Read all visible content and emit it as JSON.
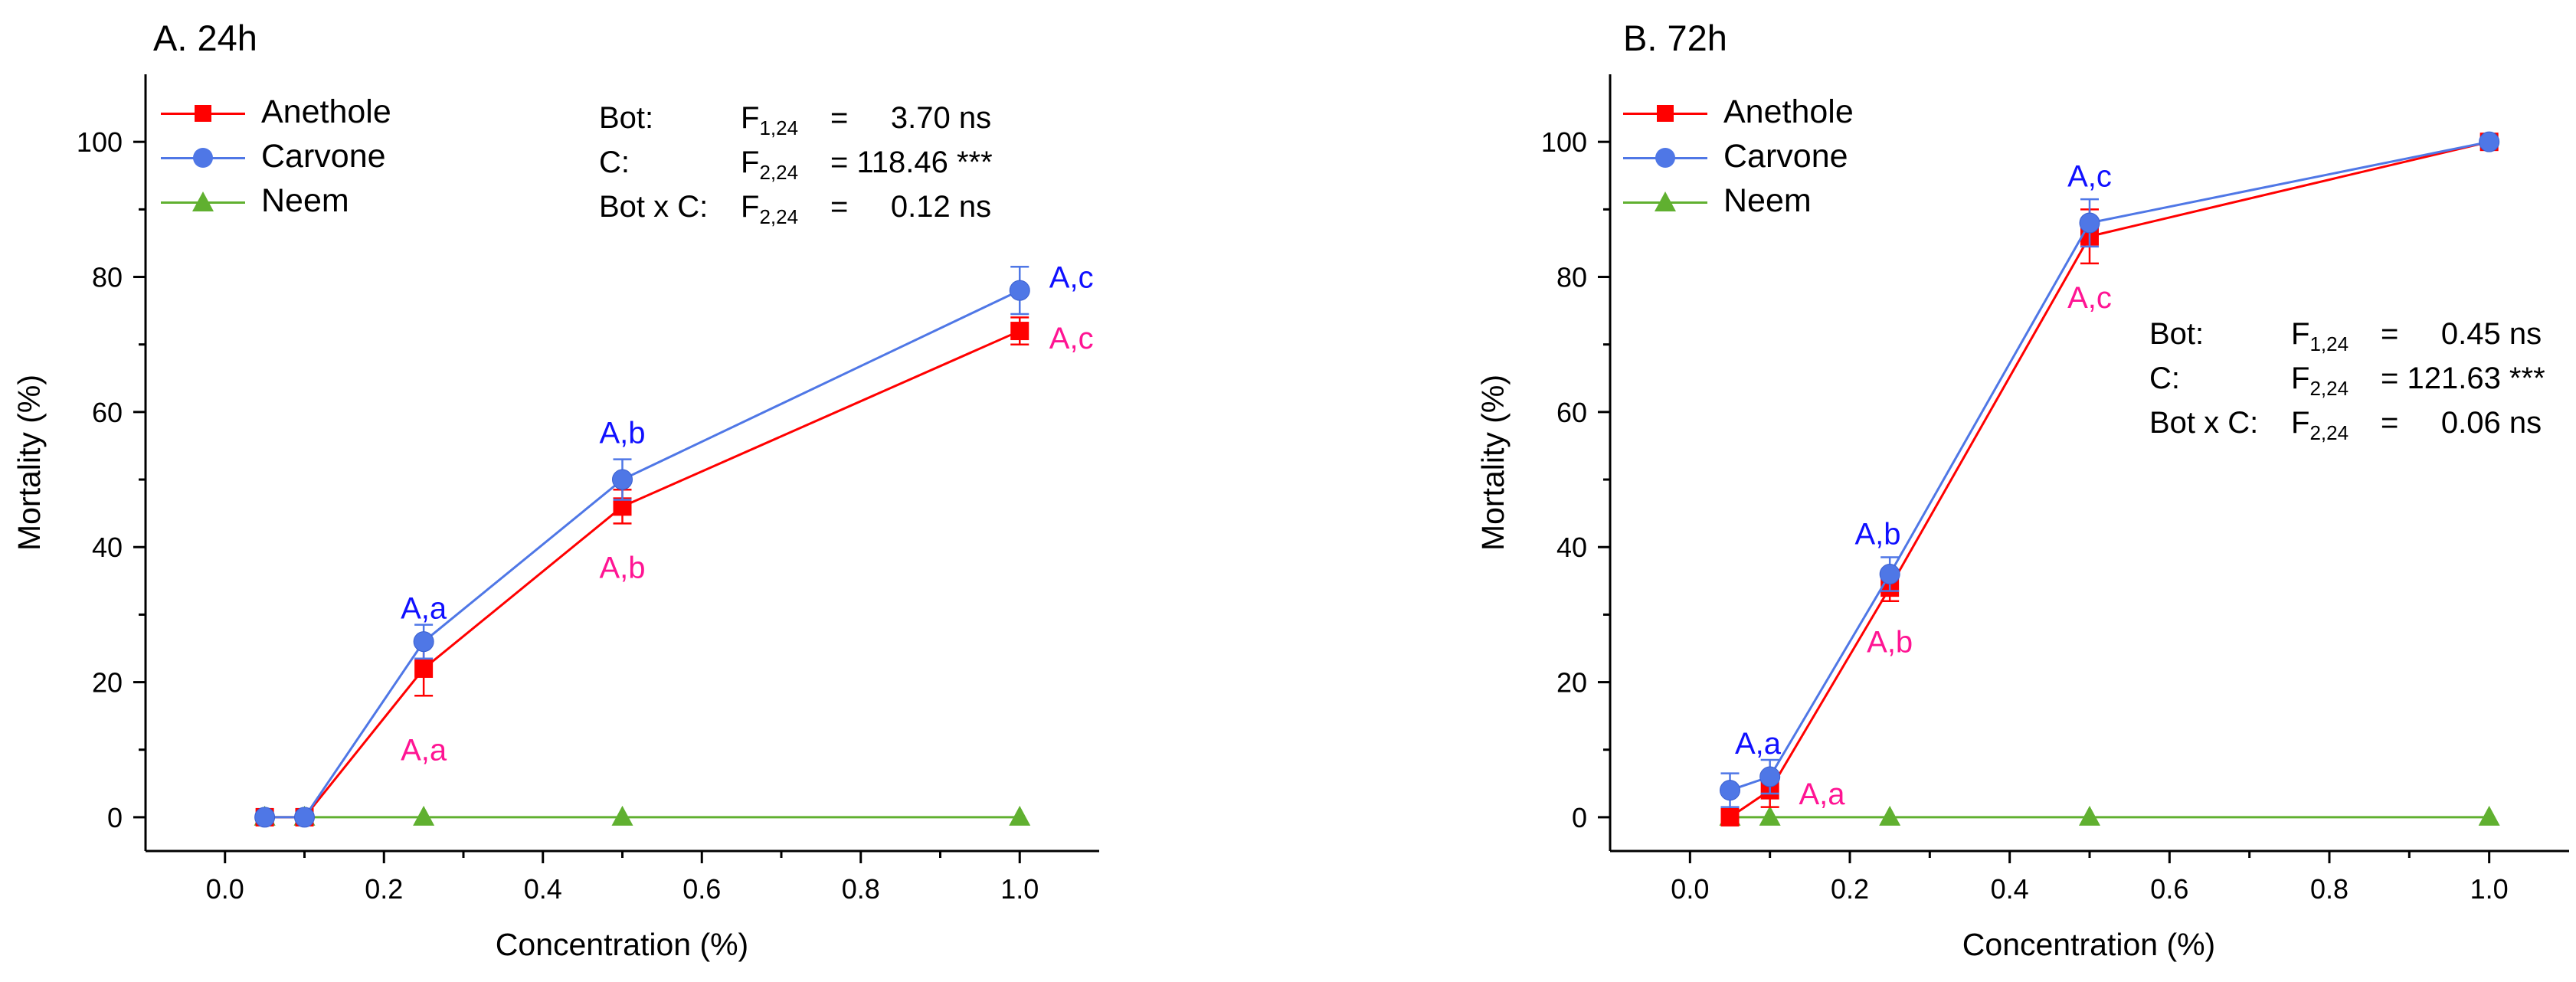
{
  "colors": {
    "anethole": "#ff0000",
    "carvone": "#4f77e6",
    "neem": "#60b030",
    "annot_blue": "#1010ff",
    "annot_pink": "#ff1493"
  },
  "chart_data": [
    {
      "type": "line",
      "title": "A. 24h",
      "xlabel": "Concentration (%)",
      "ylabel": "Mortality (%)",
      "xlim": [
        -0.1,
        1.1
      ],
      "ylim": [
        -5,
        110
      ],
      "xticks": [
        0.0,
        0.2,
        0.4,
        0.6,
        0.8,
        1.0
      ],
      "xtick_labels": [
        "0.0",
        "0.2",
        "0.4",
        "0.6",
        "0.8",
        "1.0"
      ],
      "yticks": [
        0,
        20,
        40,
        60,
        80,
        100
      ],
      "ytick_labels": [
        "0",
        "20",
        "40",
        "60",
        "80",
        "100"
      ],
      "x": [
        0.05,
        0.1,
        0.25,
        0.5,
        1.0
      ],
      "series": [
        {
          "name": "Anethole",
          "marker": "square",
          "values": [
            0,
            0,
            22,
            46,
            72
          ],
          "errors": [
            0,
            0,
            4,
            2.5,
            2
          ]
        },
        {
          "name": "Carvone",
          "marker": "circle",
          "values": [
            0,
            0,
            26,
            50,
            78
          ],
          "errors": [
            0,
            0,
            2.5,
            3,
            3.5
          ]
        },
        {
          "name": "Neem",
          "marker": "triangle",
          "values": [
            0,
            0,
            0,
            0,
            0
          ],
          "errors": [
            0,
            0,
            0,
            0,
            0
          ]
        }
      ],
      "annotations": [
        {
          "text": "A,a",
          "x": 0.25,
          "y": 31,
          "color": "blue"
        },
        {
          "text": "A,a",
          "x": 0.25,
          "y": 10,
          "color": "pink"
        },
        {
          "text": "A,b",
          "x": 0.5,
          "y": 57,
          "color": "blue"
        },
        {
          "text": "A,b",
          "x": 0.5,
          "y": 37,
          "color": "pink"
        },
        {
          "text": "A,c",
          "x": 1.065,
          "y": 80,
          "color": "blue"
        },
        {
          "text": "A,c",
          "x": 1.065,
          "y": 71,
          "color": "pink"
        }
      ],
      "stats": [
        {
          "label": "Bot:",
          "f": "F",
          "df": "1,24",
          "value": "=     3.70 ns"
        },
        {
          "label": "C:",
          "f": "F",
          "df": "2,24",
          "value": "= 118.46 ***"
        },
        {
          "label": "Bot x C:",
          "f": "F",
          "df": "2,24",
          "value": "=     0.12 ns"
        }
      ]
    },
    {
      "type": "line",
      "title": "B. 72h",
      "xlabel": "Concentration (%)",
      "ylabel": "Mortality (%)",
      "xlim": [
        -0.1,
        1.1
      ],
      "ylim": [
        -5,
        110
      ],
      "xticks": [
        0.0,
        0.2,
        0.4,
        0.6,
        0.8,
        1.0
      ],
      "xtick_labels": [
        "0.0",
        "0.2",
        "0.4",
        "0.6",
        "0.8",
        "1.0"
      ],
      "yticks": [
        0,
        20,
        40,
        60,
        80,
        100
      ],
      "ytick_labels": [
        "0",
        "20",
        "40",
        "60",
        "80",
        "100"
      ],
      "x": [
        0.05,
        0.1,
        0.25,
        0.5,
        1.0
      ],
      "series": [
        {
          "name": "Anethole",
          "marker": "square",
          "values": [
            0,
            4,
            34,
            86,
            100
          ],
          "errors": [
            0,
            2.5,
            2,
            4,
            0
          ]
        },
        {
          "name": "Carvone",
          "marker": "circle",
          "values": [
            4,
            6,
            36,
            88,
            100
          ],
          "errors": [
            2.5,
            2.5,
            2.5,
            3.5,
            0
          ]
        },
        {
          "name": "Neem",
          "marker": "triangle",
          "values": [
            0,
            0,
            0,
            0,
            0
          ],
          "errors": [
            0,
            0,
            0,
            0,
            0
          ]
        }
      ],
      "annotations": [
        {
          "text": "A,a",
          "x": 0.085,
          "y": 11,
          "color": "blue"
        },
        {
          "text": "A,a",
          "x": 0.165,
          "y": 3.5,
          "color": "pink"
        },
        {
          "text": "A,b",
          "x": 0.235,
          "y": 42,
          "color": "blue"
        },
        {
          "text": "A,b",
          "x": 0.25,
          "y": 26,
          "color": "pink"
        },
        {
          "text": "A,c",
          "x": 0.5,
          "y": 95,
          "color": "blue"
        },
        {
          "text": "A,c",
          "x": 0.5,
          "y": 77,
          "color": "pink"
        }
      ],
      "stats": [
        {
          "label": "Bot:",
          "f": "F",
          "df": "1,24",
          "value": "=     0.45 ns"
        },
        {
          "label": "C:",
          "f": "F",
          "df": "2,24",
          "value": "= 121.63 ***"
        },
        {
          "label": "Bot x C:",
          "f": "F",
          "df": "2,24",
          "value": "=     0.06 ns"
        }
      ]
    }
  ]
}
